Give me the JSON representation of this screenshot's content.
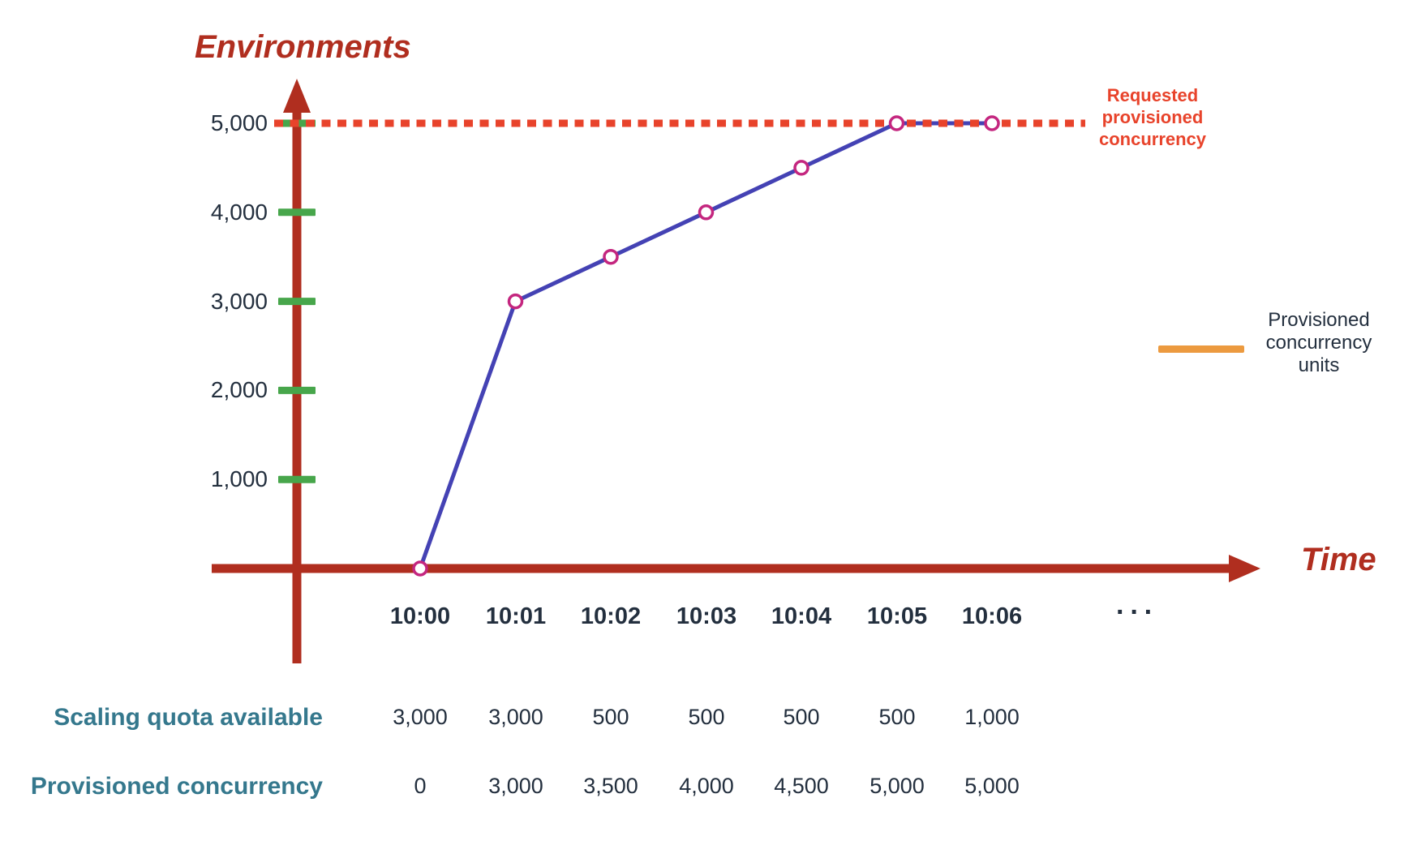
{
  "colors": {
    "axis_red": "#B02E1F",
    "bright_red": "#E8432B",
    "navy": "#232F3E",
    "teal": "#35788D",
    "tick_green": "#47A64B",
    "line_blue": "#4442B4",
    "marker_pink": "#C4267F",
    "legend_orange": "#EC9A3F",
    "marker_fill": "#FFFFFF"
  },
  "chart_data": {
    "type": "line",
    "y_label": "Environments",
    "x_label": "Time",
    "x": [
      "10:00",
      "10:01",
      "10:02",
      "10:03",
      "10:04",
      "10:05",
      "10:06"
    ],
    "x_continuation": "···",
    "series": [
      {
        "name": "Provisioned concurrency units",
        "color": "#4442B4",
        "values": [
          0,
          3000,
          3500,
          4000,
          4500,
          5000,
          5000
        ]
      }
    ],
    "reference_line": {
      "label": "Requested provisioned concurrency",
      "value": 5000,
      "style": "dotted",
      "color": "#E8432B"
    },
    "ylim": [
      0,
      5000
    ],
    "y_ticks": [
      {
        "label": "1,000",
        "value": 1000
      },
      {
        "label": "2,000",
        "value": 2000
      },
      {
        "label": "3,000",
        "value": 3000
      },
      {
        "label": "4,000",
        "value": 4000
      },
      {
        "label": "5,000",
        "value": 5000
      }
    ],
    "grid": false,
    "legend_position": "right"
  },
  "legend": {
    "label": "Provisioned concurrency units"
  },
  "table": {
    "rows": [
      {
        "label": "Scaling quota available",
        "values": [
          "3,000",
          "3,000",
          "500",
          "500",
          "500",
          "500",
          "1,000"
        ]
      },
      {
        "label": "Provisioned concurrency",
        "values": [
          "0",
          "3,000",
          "3,500",
          "4,000",
          "4,500",
          "5,000",
          "5,000"
        ]
      }
    ]
  }
}
